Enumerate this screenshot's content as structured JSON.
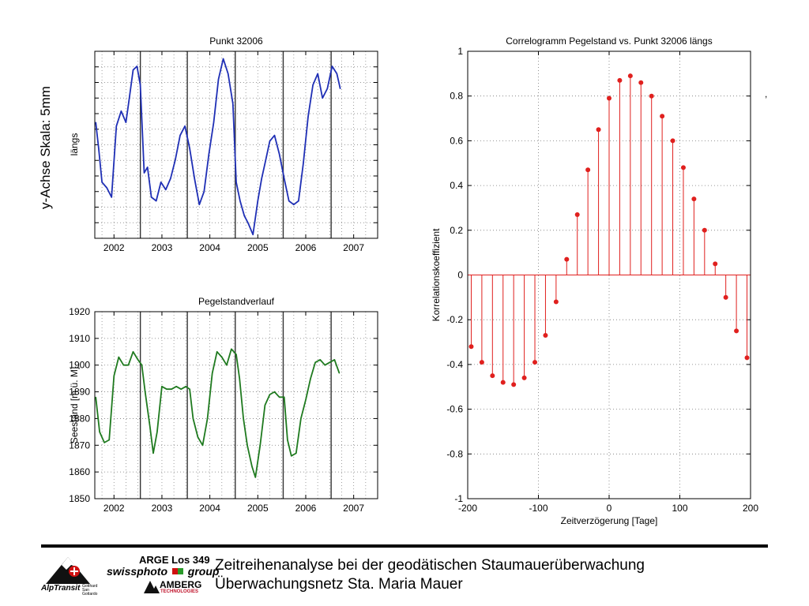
{
  "side_label": "y-Achse Skala: 5mm",
  "stray_mark": ",",
  "chart_data": [
    {
      "type": "line",
      "title": "Punkt 32006",
      "ylabel": "längs",
      "xlabel": "",
      "xlim": [
        2001.6,
        2007.5
      ],
      "ylim": [
        0,
        1
      ],
      "xticks": [
        2002,
        2003,
        2004,
        2005,
        2006,
        2007
      ],
      "xtick_labels": [
        "2002",
        "2003",
        "2004",
        "2005",
        "2006",
        "2007"
      ],
      "yticks_count": 12,
      "grid": true,
      "vertical_markers": [
        2002.55,
        2003.53,
        2004.53,
        2005.53,
        2006.53
      ],
      "line_color": "#1f2fb5",
      "series": [
        {
          "x": [
            2001.62,
            2001.68,
            2001.75,
            2001.85,
            2001.95,
            2002.05,
            2002.15,
            2002.25,
            2002.32,
            2002.4,
            2002.48,
            2002.55,
            2002.63,
            2002.7,
            2002.78,
            2002.88,
            2002.98,
            2003.08,
            2003.18,
            2003.28,
            2003.38,
            2003.48,
            2003.58,
            2003.68,
            2003.78,
            2003.88,
            2003.98,
            2004.08,
            2004.18,
            2004.28,
            2004.38,
            2004.48,
            2004.55,
            2004.63,
            2004.72,
            2004.8,
            2004.9,
            2005.0,
            2005.08,
            2005.15,
            2005.25,
            2005.35,
            2005.45,
            2005.55,
            2005.65,
            2005.75,
            2005.85,
            2005.95,
            2006.05,
            2006.15,
            2006.25,
            2006.35,
            2006.45,
            2006.55,
            2006.65,
            2006.72
          ],
          "y": [
            0.62,
            0.48,
            0.3,
            0.27,
            0.22,
            0.6,
            0.68,
            0.62,
            0.75,
            0.9,
            0.92,
            0.82,
            0.35,
            0.38,
            0.22,
            0.2,
            0.3,
            0.26,
            0.32,
            0.42,
            0.55,
            0.6,
            0.48,
            0.32,
            0.18,
            0.25,
            0.45,
            0.62,
            0.85,
            0.96,
            0.88,
            0.72,
            0.3,
            0.2,
            0.12,
            0.08,
            0.02,
            0.2,
            0.32,
            0.4,
            0.52,
            0.55,
            0.45,
            0.32,
            0.2,
            0.18,
            0.2,
            0.4,
            0.65,
            0.82,
            0.88,
            0.75,
            0.8,
            0.92,
            0.88,
            0.8
          ]
        }
      ]
    },
    {
      "type": "line",
      "title": "Pegelstandverlauf",
      "ylabel": "Seestand [m ü. M]",
      "xlabel": "",
      "xlim": [
        2001.6,
        2007.5
      ],
      "ylim": [
        1850,
        1920
      ],
      "xticks": [
        2002,
        2003,
        2004,
        2005,
        2006,
        2007
      ],
      "xtick_labels": [
        "2002",
        "2003",
        "2004",
        "2005",
        "2006",
        "2007"
      ],
      "yticks": [
        1850,
        1860,
        1870,
        1880,
        1890,
        1900,
        1910,
        1920
      ],
      "ytick_labels": [
        "1850",
        "1860",
        "1870",
        "1880",
        "1890",
        "1900",
        "1910",
        "1920"
      ],
      "grid": true,
      "vertical_markers": [
        2002.55,
        2003.53,
        2004.53,
        2005.53,
        2006.53
      ],
      "line_color": "#1f7a1f",
      "series": [
        {
          "x": [
            2001.62,
            2001.7,
            2001.8,
            2001.9,
            2002.0,
            2002.1,
            2002.2,
            2002.3,
            2002.4,
            2002.5,
            2002.58,
            2002.65,
            2002.75,
            2002.82,
            2002.9,
            2003.0,
            2003.1,
            2003.2,
            2003.3,
            2003.4,
            2003.5,
            2003.58,
            2003.65,
            2003.75,
            2003.85,
            2003.95,
            2004.05,
            2004.15,
            2004.25,
            2004.35,
            2004.45,
            2004.55,
            2004.62,
            2004.7,
            2004.78,
            2004.88,
            2004.95,
            2005.05,
            2005.15,
            2005.25,
            2005.35,
            2005.45,
            2005.55,
            2005.62,
            2005.7,
            2005.8,
            2005.9,
            2006.0,
            2006.1,
            2006.2,
            2006.3,
            2006.4,
            2006.5,
            2006.6,
            2006.7
          ],
          "y": [
            1888,
            1875,
            1871,
            1872,
            1896,
            1903,
            1900,
            1900,
            1905,
            1902,
            1900,
            1890,
            1877,
            1867,
            1875,
            1892,
            1891,
            1891,
            1892,
            1891,
            1892,
            1891,
            1880,
            1873,
            1870,
            1880,
            1897,
            1905,
            1903,
            1900,
            1906,
            1904,
            1895,
            1880,
            1870,
            1862,
            1858,
            1870,
            1885,
            1889,
            1890,
            1888,
            1888,
            1872,
            1866,
            1867,
            1880,
            1887,
            1895,
            1901,
            1902,
            1900,
            1901,
            1902,
            1897
          ]
        }
      ]
    },
    {
      "type": "stem",
      "title": "Correlogramm Pegelstand vs. Punkt 32006 längs",
      "xlabel": "Zeitverzögerung [Tage]",
      "ylabel": "Korrelationskoeffizient",
      "xlim": [
        -200,
        200
      ],
      "ylim": [
        -1,
        1
      ],
      "xticks": [
        -200,
        -100,
        0,
        100,
        200
      ],
      "xtick_labels": [
        "-200",
        "-100",
        "0",
        "100",
        "200"
      ],
      "yticks": [
        -1,
        -0.8,
        -0.6,
        -0.4,
        -0.2,
        0,
        0.2,
        0.4,
        0.6,
        0.8,
        1
      ],
      "ytick_labels": [
        "-1",
        "-0.8",
        "-0.6",
        "-0.4",
        "-0.2",
        "0",
        "0.2",
        "0.4",
        "0.6",
        "0.8",
        "1"
      ],
      "grid": true,
      "color": "#e0201e",
      "x": [
        -195,
        -180,
        -165,
        -150,
        -135,
        -120,
        -105,
        -90,
        -75,
        -60,
        -45,
        -30,
        -15,
        0,
        15,
        30,
        45,
        60,
        75,
        90,
        105,
        120,
        135,
        150,
        165,
        180,
        195
      ],
      "y": [
        -0.32,
        -0.39,
        -0.45,
        -0.48,
        -0.49,
        -0.46,
        -0.39,
        -0.27,
        -0.12,
        0.07,
        0.27,
        0.47,
        0.65,
        0.79,
        0.87,
        0.89,
        0.86,
        0.8,
        0.71,
        0.6,
        0.48,
        0.34,
        0.2,
        0.05,
        -0.1,
        -0.25,
        -0.37
      ]
    }
  ],
  "footer": {
    "line1": "Zeitreihenanalyse bei der geodätischen Staumauerüberwachung",
    "line2": "Überwachungsnetz Sta. Maria Mauer",
    "arge": "ARGE Los 349",
    "swissphoto": "swissphoto",
    "group": "group",
    "amberg": "AMBERG",
    "amberg_sub": "TECHNOLOGIES",
    "alptransit": "AlpTransit",
    "alptransit_sub": "Gotthard San Gottardo"
  }
}
